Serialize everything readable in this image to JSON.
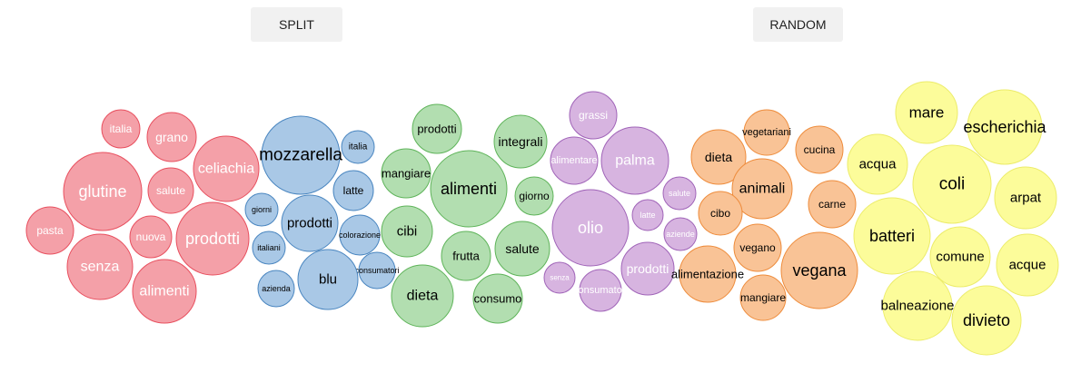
{
  "buttons": {
    "split_label": "SPLIT",
    "random_label": "RANDOM"
  },
  "chart_data": {
    "type": "bubble",
    "groups": [
      {
        "color": "#f4a0a8",
        "stroke": "#e8505f",
        "text_color": "#ffffff",
        "words": [
          "italia",
          "grano",
          "celiachia",
          "glutine",
          "salute",
          "pasta",
          "nuova",
          "prodotti",
          "senza",
          "alimenti"
        ]
      },
      {
        "color": "#a9c8e6",
        "stroke": "#4a86c0",
        "text_color": "#000000",
        "words": [
          "italia",
          "mozzarella",
          "latte",
          "giorni",
          "prodotti",
          "italiani",
          "colorazione",
          "consumatori",
          "azienda",
          "blu"
        ]
      },
      {
        "color": "#b2deb0",
        "stroke": "#5fb45a",
        "text_color": "#000000",
        "words": [
          "prodotti",
          "integrali",
          "mangiare",
          "alimenti",
          "giorno",
          "cibi",
          "salute",
          "frutta",
          "dieta",
          "consumo"
        ]
      },
      {
        "color": "#d7b4e0",
        "stroke": "#a064b8",
        "text_color": "#ffffff",
        "words": [
          "grassi",
          "alimentare",
          "palma",
          "salute",
          "latte",
          "olio",
          "aziende",
          "prodotti",
          "senza",
          "consumatori"
        ]
      },
      {
        "color": "#f9c396",
        "stroke": "#ee8c3c",
        "text_color": "#000000",
        "words": [
          "vegetariani",
          "dieta",
          "cucina",
          "animali",
          "carne",
          "cibo",
          "vegano",
          "alimentazione",
          "vegana",
          "mangiare"
        ]
      },
      {
        "color": "#fcfc9a",
        "stroke": "#ecec6a",
        "text_color": "#000000",
        "words": [
          "mare",
          "escherichia",
          "acqua",
          "coli",
          "arpat",
          "batteri",
          "comune",
          "acque",
          "balneazione",
          "divieto"
        ]
      }
    ]
  }
}
